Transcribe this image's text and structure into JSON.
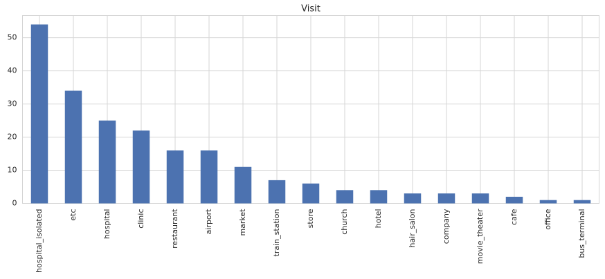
{
  "chart_data": {
    "type": "bar",
    "title": "Visit",
    "categories": [
      "hospital_isolated",
      "etc",
      "hospital",
      "clinic",
      "restaurant",
      "airport",
      "market",
      "train_station",
      "store",
      "church",
      "hotel",
      "hair_salon",
      "company",
      "movie_theater",
      "cafe",
      "office",
      "bus_terminal"
    ],
    "values": [
      54,
      34,
      25,
      22,
      16,
      16,
      11,
      7,
      6,
      4,
      4,
      3,
      3,
      3,
      2,
      1,
      1
    ],
    "color": "#4c72b0",
    "ylim": [
      0,
      56.7
    ],
    "yticks": [
      0,
      10,
      20,
      30,
      40,
      50
    ],
    "grid": true
  }
}
